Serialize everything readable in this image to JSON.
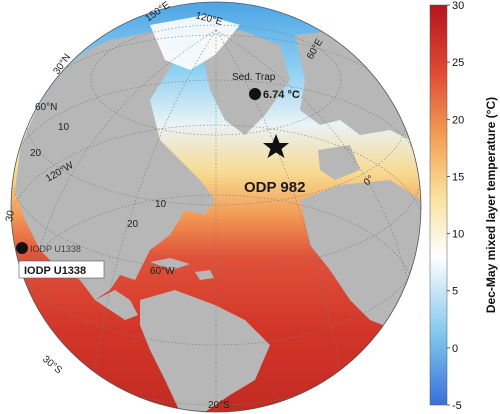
{
  "map": {
    "projection": "orthographic globe",
    "view": "North Atlantic and Arctic",
    "land_color": "#b7b7b7",
    "no_data_color": "#ffffff",
    "sites": [
      {
        "label": "Sed. Trap",
        "value_label": "6.74 °C",
        "marker": "dot"
      },
      {
        "label": "ODP 982",
        "marker": "star"
      },
      {
        "label": "IODP U1338",
        "marker": "dot",
        "faint_label": "IODP U1338"
      }
    ],
    "graticule_labels": {
      "l_120e": "120°E",
      "l_150e": "150°E",
      "l_60e": "60°E",
      "l_30n_top": "30°N",
      "l_60n": "60°N",
      "l_10_a": "10",
      "l_20_a": "20",
      "l_120w": "120°W",
      "l_10_b": "10",
      "l_0": "0°",
      "l_20_b": "20",
      "l_30_side": "30",
      "l_60w": "60°W",
      "l_30s": "30°S",
      "l_20s": "20°S"
    }
  },
  "colorbar": {
    "title": "Dec-May mixed layer temperature (°C)",
    "min": -5,
    "max": 30,
    "ticks": [
      "30",
      "25",
      "20",
      "15",
      "10",
      "5",
      "0",
      "-5"
    ],
    "stops": [
      "#3a6fd9",
      "#7ec4ec",
      "#ffffff",
      "#f9e29b",
      "#f4a55a",
      "#e14b33",
      "#b5141d"
    ]
  }
}
